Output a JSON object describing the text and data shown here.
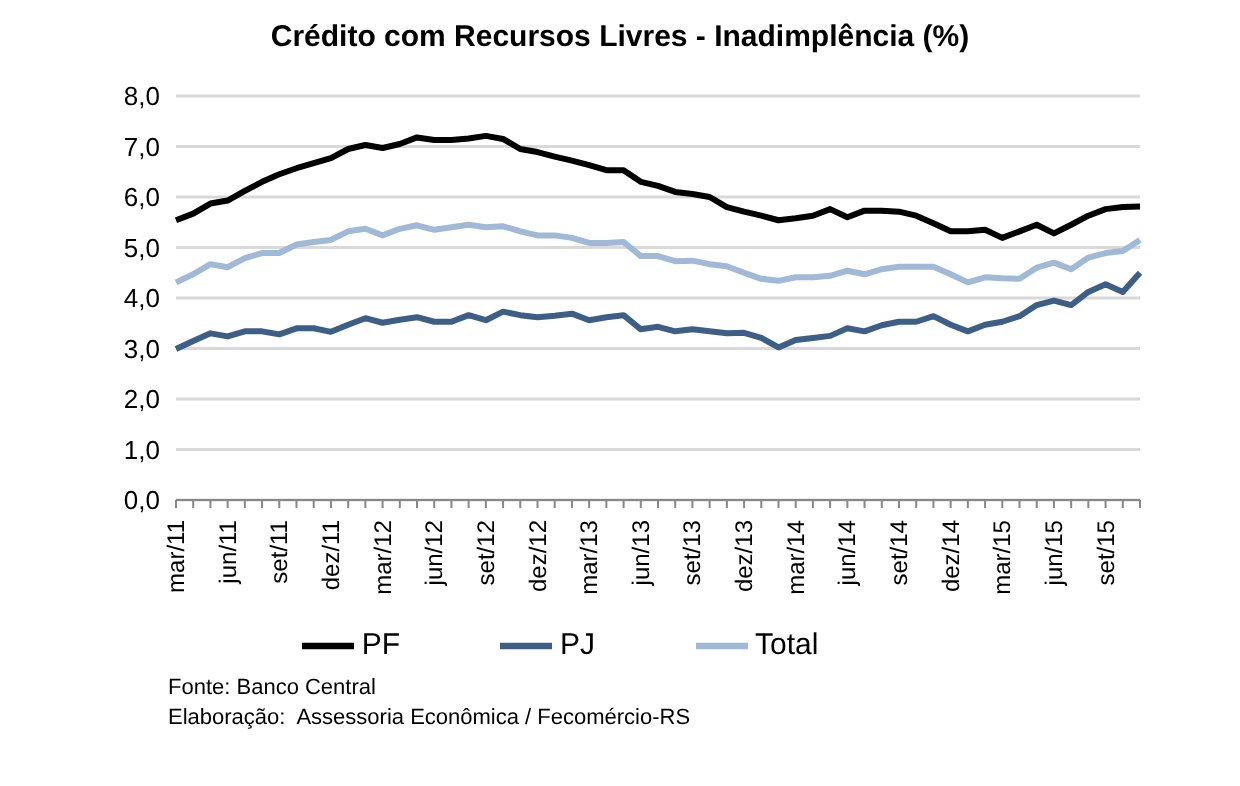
{
  "chart_data": {
    "type": "line",
    "title": "Crédito com Recursos Livres - Inadimplência (%)",
    "categories": [
      "mar/11",
      null,
      null,
      "jun/11",
      null,
      null,
      "set/11",
      null,
      null,
      "dez/11",
      null,
      null,
      "mar/12",
      null,
      null,
      "jun/12",
      null,
      null,
      "set/12",
      null,
      null,
      "dez/12",
      null,
      null,
      "mar/13",
      null,
      null,
      "jun/13",
      null,
      null,
      "set/13",
      null,
      null,
      "dez/13",
      null,
      null,
      "mar/14",
      null,
      null,
      "jun/14",
      null,
      null,
      "set/14",
      null,
      null,
      "dez/14",
      null,
      null,
      "mar/15",
      null,
      null,
      "jun/15",
      null,
      null,
      "set/15",
      null,
      null
    ],
    "series": [
      {
        "name": "Total",
        "color": "#9fb9d6",
        "values": [
          4.31,
          4.47,
          4.67,
          4.61,
          4.79,
          4.89,
          4.89,
          5.06,
          5.11,
          5.15,
          5.32,
          5.37,
          5.24,
          5.37,
          5.44,
          5.35,
          5.4,
          5.45,
          5.4,
          5.42,
          5.32,
          5.24,
          5.24,
          5.19,
          5.09,
          5.09,
          5.11,
          4.83,
          4.83,
          4.73,
          4.74,
          4.67,
          4.63,
          4.5,
          4.38,
          4.34,
          4.41,
          4.41,
          4.44,
          4.54,
          4.47,
          4.57,
          4.62,
          4.62,
          4.62,
          4.47,
          4.31,
          4.41,
          4.39,
          4.38,
          4.6,
          4.7,
          4.57,
          4.8,
          4.89,
          4.93,
          5.15
        ]
      },
      {
        "name": "PJ",
        "color": "#3d5f86",
        "values": [
          2.99,
          3.15,
          3.3,
          3.24,
          3.34,
          3.34,
          3.28,
          3.4,
          3.4,
          3.33,
          3.47,
          3.6,
          3.51,
          3.57,
          3.62,
          3.53,
          3.53,
          3.66,
          3.56,
          3.73,
          3.66,
          3.62,
          3.65,
          3.69,
          3.56,
          3.62,
          3.66,
          3.38,
          3.43,
          3.34,
          3.38,
          3.34,
          3.3,
          3.31,
          3.21,
          3.02,
          3.17,
          3.21,
          3.25,
          3.4,
          3.34,
          3.46,
          3.53,
          3.53,
          3.64,
          3.47,
          3.34,
          3.47,
          3.53,
          3.64,
          3.86,
          3.95,
          3.86,
          4.12,
          4.27,
          4.12,
          4.5
        ]
      },
      {
        "name": "PF",
        "color": "#000000",
        "values": [
          5.54,
          5.67,
          5.87,
          5.93,
          6.12,
          6.3,
          6.45,
          6.57,
          6.67,
          6.77,
          6.95,
          7.03,
          6.97,
          7.05,
          7.18,
          7.13,
          7.13,
          7.16,
          7.21,
          7.15,
          6.95,
          6.89,
          6.8,
          6.72,
          6.63,
          6.53,
          6.53,
          6.3,
          6.22,
          6.1,
          6.06,
          6.0,
          5.8,
          5.71,
          5.63,
          5.54,
          5.58,
          5.63,
          5.76,
          5.6,
          5.73,
          5.73,
          5.71,
          5.63,
          5.48,
          5.32,
          5.32,
          5.35,
          5.19,
          5.32,
          5.45,
          5.28,
          5.45,
          5.63,
          5.76,
          5.8,
          5.81
        ]
      }
    ],
    "ylim": [
      0,
      8
    ],
    "yticks": [
      {
        "value": 0,
        "label": "0,0"
      },
      {
        "value": 1,
        "label": "1,0"
      },
      {
        "value": 2,
        "label": "2,0"
      },
      {
        "value": 3,
        "label": "3,0"
      },
      {
        "value": 4,
        "label": "4,0"
      },
      {
        "value": 5,
        "label": "5,0"
      },
      {
        "value": 6,
        "label": "6,0"
      },
      {
        "value": 7,
        "label": "7,0"
      },
      {
        "value": 8,
        "label": "8,0"
      }
    ],
    "grid": "y",
    "legend": "bottom",
    "annotations": [
      "Fonte: Banco Central",
      "Elaboração:  Assessoria Econômica / Fecomércio-RS"
    ]
  }
}
